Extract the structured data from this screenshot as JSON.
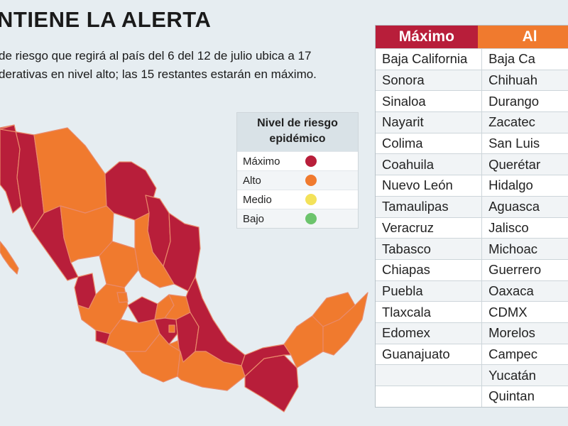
{
  "header": {
    "title": "NTIENE LA ALERTA",
    "subtitle_line1": "de riesgo que regirá al país del 6 del 12 de julio ubica a 17",
    "subtitle_line2": "derativas en nivel alto; las 15 restantes estarán en máximo."
  },
  "legend": {
    "title_line1": "Nivel de riesgo",
    "title_line2": "epidémico",
    "items": [
      {
        "label": "Máximo",
        "color": "#b81e3a"
      },
      {
        "label": "Alto",
        "color": "#f07a2e"
      },
      {
        "label": "Medio",
        "color": "#f3e25a"
      },
      {
        "label": "Bajo",
        "color": "#6cc46c"
      }
    ]
  },
  "colors": {
    "maximo": "#b81e3a",
    "alto": "#f07a2e",
    "background": "#e6edf1"
  },
  "table": {
    "col_maximo": "Máximo",
    "col_alto": "Al",
    "rows": [
      [
        "Baja California",
        "Baja Ca"
      ],
      [
        "Sonora",
        "Chihuah"
      ],
      [
        "Sinaloa",
        "Durango"
      ],
      [
        "Nayarit",
        "Zacatec"
      ],
      [
        "Colima",
        "San Luis"
      ],
      [
        "Coahuila",
        "Querétar"
      ],
      [
        "Nuevo León",
        "Hidalgo"
      ],
      [
        "Tamaulipas",
        "Aguasca"
      ],
      [
        "Veracruz",
        "Jalisco"
      ],
      [
        "Tabasco",
        "Michoac"
      ],
      [
        "Chiapas",
        "Guerrero"
      ],
      [
        "Puebla",
        "Oaxaca"
      ],
      [
        "Tlaxcala",
        "CDMX"
      ],
      [
        "Edomex",
        "Morelos"
      ],
      [
        "Guanajuato",
        "Campec"
      ],
      [
        "",
        "Yucatán"
      ],
      [
        "",
        "Quintan"
      ]
    ]
  }
}
